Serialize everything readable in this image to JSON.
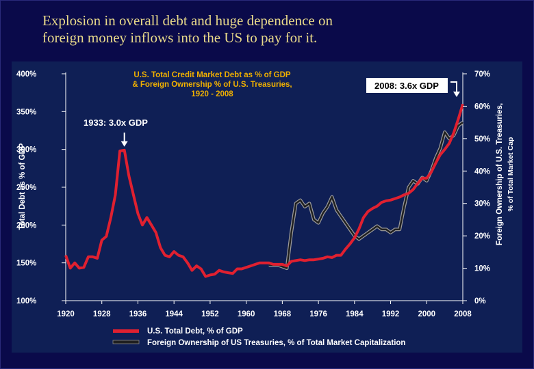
{
  "slide": {
    "title_line1": "Explosion in overall debt and huge dependence on",
    "title_line2": "foreign money inflows into the US to pay for it."
  },
  "colors": {
    "background": "#0a0a4a",
    "title": "#e8d98a",
    "panel": "#0f1f55",
    "chart_title": "#f0b000",
    "debt_line": "#e02030",
    "foreign_line": "#202020",
    "text": "#ffffff"
  },
  "chart_data": {
    "type": "line",
    "title_line1": "U.S. Total Credit Market Debt as % of GDP",
    "title_line2": "& Foreign Ownership % of U.S. Treasuries,",
    "title_line3": "1920 - 2008",
    "ylabel_left": "Total Debt as % of GDP",
    "ylabel_right_line1": "Foreign Ownership of U.S. Treasuries,",
    "ylabel_right_line2": "% of Total Market Cap",
    "xlim": [
      1920,
      2008
    ],
    "ylim_left": [
      100,
      400
    ],
    "ylim_right": [
      0,
      70
    ],
    "x_ticks": [
      1920,
      1928,
      1936,
      1944,
      1952,
      1960,
      1968,
      1976,
      1984,
      1992,
      2000,
      2008
    ],
    "x_tick_labels": [
      "1920",
      "1928",
      "1936",
      "1944",
      "1952",
      "1960",
      "1968",
      "1976",
      "1984",
      "1992",
      "2000",
      "2008"
    ],
    "y_left_ticks": [
      100,
      150,
      200,
      250,
      300,
      350,
      400
    ],
    "y_left_tick_labels": [
      "100%",
      "150%",
      "200%",
      "250%",
      "300%",
      "350%",
      "400%"
    ],
    "y_right_ticks": [
      0,
      10,
      20,
      30,
      40,
      50,
      60,
      70
    ],
    "y_right_tick_labels": [
      "0%",
      "10%",
      "20%",
      "30%",
      "40%",
      "50%",
      "60%",
      "70%"
    ],
    "annotations": [
      {
        "text": "1933: 3.0x GDP",
        "x": 1933,
        "y": 300
      },
      {
        "text": "2008: 3.6x GDP",
        "x": 2008,
        "y": 360
      }
    ],
    "legend": {
      "placement": "bottom",
      "entries": [
        "U.S. Total Debt, % of GDP",
        "Foreign Ownership of US Treasuries, % of Total Market Capitalization"
      ]
    },
    "series": [
      {
        "axis": "left",
        "points": [
          [
            1920,
            160
          ],
          [
            1921,
            143
          ],
          [
            1922,
            150
          ],
          [
            1923,
            143
          ],
          [
            1924,
            144
          ],
          [
            1925,
            158
          ],
          [
            1926,
            158
          ],
          [
            1927,
            156
          ],
          [
            1928,
            180
          ],
          [
            1929,
            185
          ],
          [
            1930,
            210
          ],
          [
            1931,
            240
          ],
          [
            1932,
            298
          ],
          [
            1933,
            299
          ],
          [
            1934,
            265
          ],
          [
            1935,
            240
          ],
          [
            1936,
            215
          ],
          [
            1937,
            200
          ],
          [
            1938,
            210
          ],
          [
            1939,
            200
          ],
          [
            1940,
            190
          ],
          [
            1941,
            170
          ],
          [
            1942,
            160
          ],
          [
            1943,
            158
          ],
          [
            1944,
            165
          ],
          [
            1945,
            160
          ],
          [
            1946,
            158
          ],
          [
            1947,
            150
          ],
          [
            1948,
            140
          ],
          [
            1949,
            146
          ],
          [
            1950,
            142
          ],
          [
            1951,
            132
          ],
          [
            1952,
            134
          ],
          [
            1953,
            135
          ],
          [
            1954,
            140
          ],
          [
            1955,
            138
          ],
          [
            1956,
            137
          ],
          [
            1957,
            136
          ],
          [
            1958,
            142
          ],
          [
            1959,
            142
          ],
          [
            1960,
            144
          ],
          [
            1961,
            146
          ],
          [
            1962,
            148
          ],
          [
            1963,
            150
          ],
          [
            1964,
            150
          ],
          [
            1965,
            150
          ],
          [
            1966,
            148
          ],
          [
            1967,
            148
          ],
          [
            1968,
            148
          ],
          [
            1969,
            146
          ],
          [
            1970,
            152
          ],
          [
            1971,
            153
          ],
          [
            1972,
            154
          ],
          [
            1973,
            153
          ],
          [
            1974,
            154
          ],
          [
            1975,
            154
          ],
          [
            1976,
            155
          ],
          [
            1977,
            156
          ],
          [
            1978,
            158
          ],
          [
            1979,
            157
          ],
          [
            1980,
            160
          ],
          [
            1981,
            160
          ],
          [
            1982,
            168
          ],
          [
            1983,
            175
          ],
          [
            1984,
            183
          ],
          [
            1985,
            195
          ],
          [
            1986,
            210
          ],
          [
            1987,
            218
          ],
          [
            1988,
            222
          ],
          [
            1989,
            225
          ],
          [
            1990,
            230
          ],
          [
            1991,
            232
          ],
          [
            1992,
            233
          ],
          [
            1993,
            235
          ],
          [
            1994,
            237
          ],
          [
            1995,
            240
          ],
          [
            1996,
            242
          ],
          [
            1997,
            247
          ],
          [
            1998,
            255
          ],
          [
            1999,
            262
          ],
          [
            2000,
            262
          ],
          [
            2001,
            270
          ],
          [
            2002,
            282
          ],
          [
            2003,
            293
          ],
          [
            2004,
            300
          ],
          [
            2005,
            308
          ],
          [
            2006,
            322
          ],
          [
            2007,
            340
          ],
          [
            2008,
            360
          ]
        ]
      },
      {
        "axis": "right",
        "points": [
          [
            1965,
            11
          ],
          [
            1966,
            11
          ],
          [
            1967,
            11
          ],
          [
            1968,
            10.5
          ],
          [
            1969,
            10
          ],
          [
            1970,
            21
          ],
          [
            1971,
            30
          ],
          [
            1972,
            31
          ],
          [
            1973,
            29
          ],
          [
            1974,
            30
          ],
          [
            1975,
            25
          ],
          [
            1976,
            24
          ],
          [
            1977,
            27
          ],
          [
            1978,
            29
          ],
          [
            1979,
            32
          ],
          [
            1980,
            28
          ],
          [
            1981,
            26
          ],
          [
            1982,
            24
          ],
          [
            1983,
            22
          ],
          [
            1984,
            20
          ],
          [
            1985,
            19
          ],
          [
            1986,
            20
          ],
          [
            1987,
            21
          ],
          [
            1988,
            22
          ],
          [
            1989,
            23
          ],
          [
            1990,
            22
          ],
          [
            1991,
            22
          ],
          [
            1992,
            21
          ],
          [
            1993,
            22
          ],
          [
            1994,
            22
          ],
          [
            1995,
            29
          ],
          [
            1996,
            35
          ],
          [
            1997,
            37
          ],
          [
            1998,
            36
          ],
          [
            1999,
            38
          ],
          [
            2000,
            37
          ],
          [
            2001,
            40
          ],
          [
            2002,
            44
          ],
          [
            2003,
            47
          ],
          [
            2004,
            52
          ],
          [
            2005,
            50
          ],
          [
            2006,
            51
          ],
          [
            2007,
            54
          ],
          [
            2008,
            55
          ]
        ]
      }
    ]
  }
}
